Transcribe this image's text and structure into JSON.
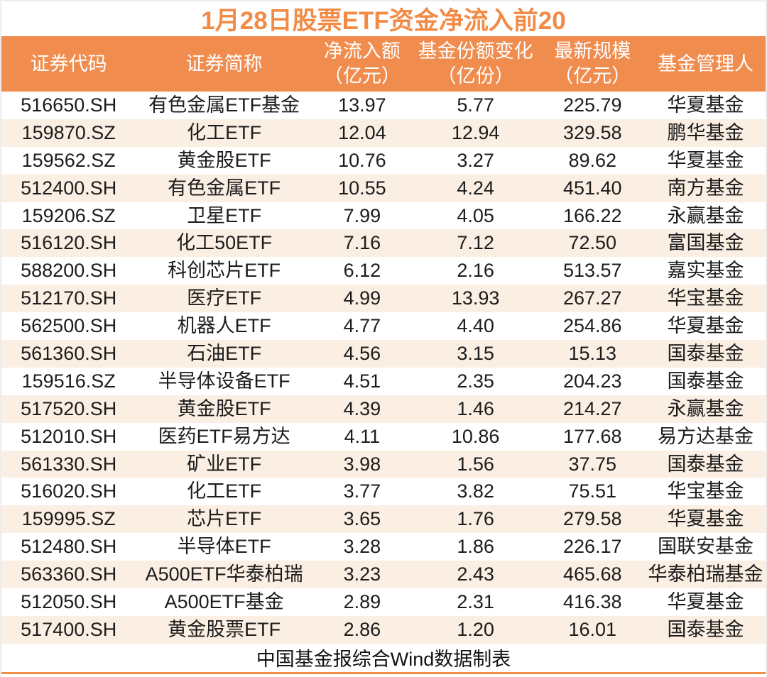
{
  "colors": {
    "accent_orange": "#F28B46",
    "header_bg": "#F08C4E",
    "header_text": "#FFFFFF",
    "row_alt_bg": "#FBEEE2",
    "row_bg": "#FFFFFF",
    "body_text": "#1C1C1C"
  },
  "chart_data": {
    "type": "table",
    "title": "1月28日股票ETF资金净流入前20",
    "source_note": "中国基金报综合Wind数据制表",
    "columns": [
      {
        "label": "证券代码",
        "unit": ""
      },
      {
        "label": "证券简称",
        "unit": ""
      },
      {
        "label": "净流入额",
        "unit": "（亿元）"
      },
      {
        "label": "基金份额变化",
        "unit": "（亿份）"
      },
      {
        "label": "最新规模",
        "unit": "（亿元）"
      },
      {
        "label": "基金管理人",
        "unit": ""
      }
    ],
    "rows": [
      [
        "516650.SH",
        "有色金属ETF基金",
        "13.97",
        "5.77",
        "225.79",
        "华夏基金"
      ],
      [
        "159870.SZ",
        "化工ETF",
        "12.04",
        "12.94",
        "329.58",
        "鹏华基金"
      ],
      [
        "159562.SZ",
        "黄金股ETF",
        "10.76",
        "3.27",
        "89.62",
        "华夏基金"
      ],
      [
        "512400.SH",
        "有色金属ETF",
        "10.55",
        "4.24",
        "451.40",
        "南方基金"
      ],
      [
        "159206.SZ",
        "卫星ETF",
        "7.99",
        "4.05",
        "166.22",
        "永赢基金"
      ],
      [
        "516120.SH",
        "化工50ETF",
        "7.16",
        "7.12",
        "72.50",
        "富国基金"
      ],
      [
        "588200.SH",
        "科创芯片ETF",
        "6.12",
        "2.16",
        "513.57",
        "嘉实基金"
      ],
      [
        "512170.SH",
        "医疗ETF",
        "4.99",
        "13.93",
        "267.27",
        "华宝基金"
      ],
      [
        "562500.SH",
        "机器人ETF",
        "4.77",
        "4.40",
        "254.86",
        "华夏基金"
      ],
      [
        "561360.SH",
        "石油ETF",
        "4.56",
        "3.15",
        "15.13",
        "国泰基金"
      ],
      [
        "159516.SZ",
        "半导体设备ETF",
        "4.51",
        "2.35",
        "204.23",
        "国泰基金"
      ],
      [
        "517520.SH",
        "黄金股ETF",
        "4.39",
        "1.46",
        "214.27",
        "永赢基金"
      ],
      [
        "512010.SH",
        "医药ETF易方达",
        "4.11",
        "10.86",
        "177.68",
        "易方达基金"
      ],
      [
        "561330.SH",
        "矿业ETF",
        "3.98",
        "1.56",
        "37.75",
        "国泰基金"
      ],
      [
        "516020.SH",
        "化工ETF",
        "3.77",
        "3.82",
        "75.51",
        "华宝基金"
      ],
      [
        "159995.SZ",
        "芯片ETF",
        "3.65",
        "1.76",
        "279.58",
        "华夏基金"
      ],
      [
        "512480.SH",
        "半导体ETF",
        "3.28",
        "1.86",
        "226.17",
        "国联安基金"
      ],
      [
        "563360.SH",
        "A500ETF华泰柏瑞",
        "3.23",
        "2.43",
        "465.68",
        "华泰柏瑞基金"
      ],
      [
        "512050.SH",
        "A500ETF基金",
        "2.89",
        "2.31",
        "416.38",
        "华夏基金"
      ],
      [
        "517400.SH",
        "黄金股票ETF",
        "2.86",
        "1.20",
        "16.01",
        "国泰基金"
      ]
    ],
    "cell_names": [
      "security-code",
      "security-name",
      "net-inflow",
      "share-change",
      "latest-scale",
      "fund-manager"
    ]
  }
}
